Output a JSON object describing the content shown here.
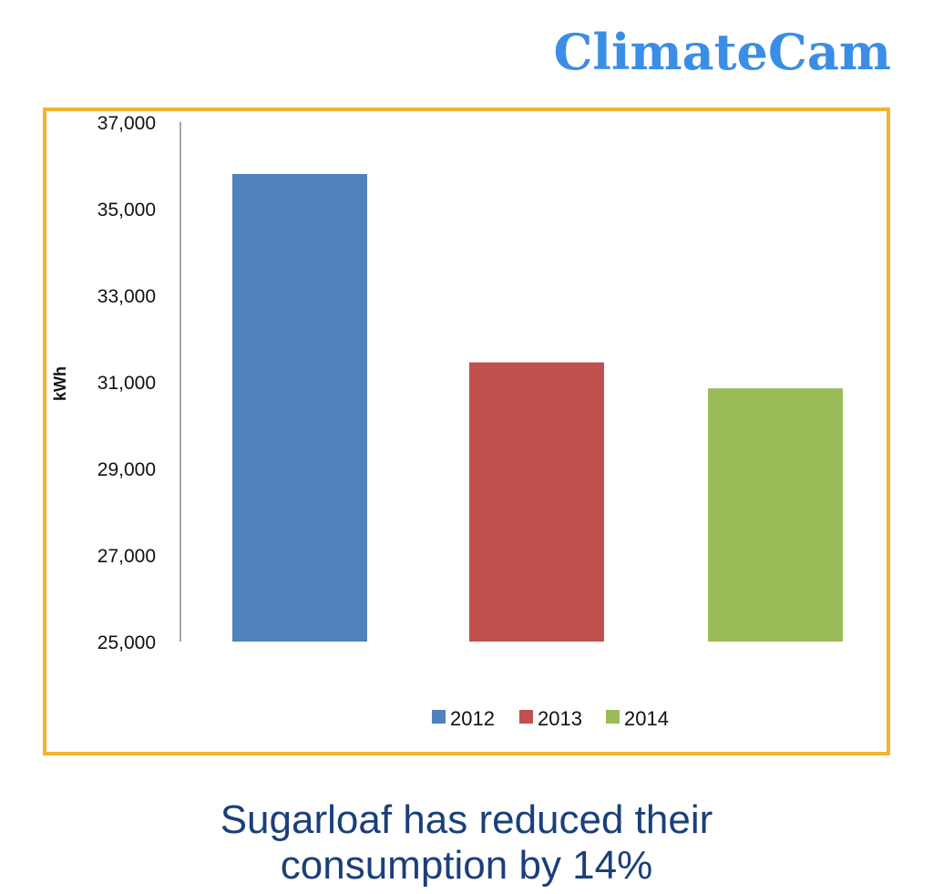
{
  "brand": {
    "name": "ClimateCam",
    "color": "#3a8ee6"
  },
  "frame_color": "#f3b231",
  "caption": {
    "line1": "Sugarloaf has reduced their",
    "line2": "consumption by 14%"
  },
  "chart_data": {
    "type": "bar",
    "categories": [
      "2012",
      "2013",
      "2014"
    ],
    "values": [
      35800,
      31450,
      30850
    ],
    "colors": [
      "#4f81bd",
      "#c0504d",
      "#9bbb59"
    ],
    "ylabel": "kWh",
    "ylim": [
      25000,
      37000
    ],
    "yticks": [
      "25,000",
      "27,000",
      "29,000",
      "31,000",
      "33,000",
      "35,000",
      "37,000"
    ],
    "ytick_values": [
      25000,
      27000,
      29000,
      31000,
      33000,
      35000,
      37000
    ],
    "legend": [
      "2012",
      "2013",
      "2014"
    ],
    "legend_position": "bottom",
    "grid": false
  }
}
